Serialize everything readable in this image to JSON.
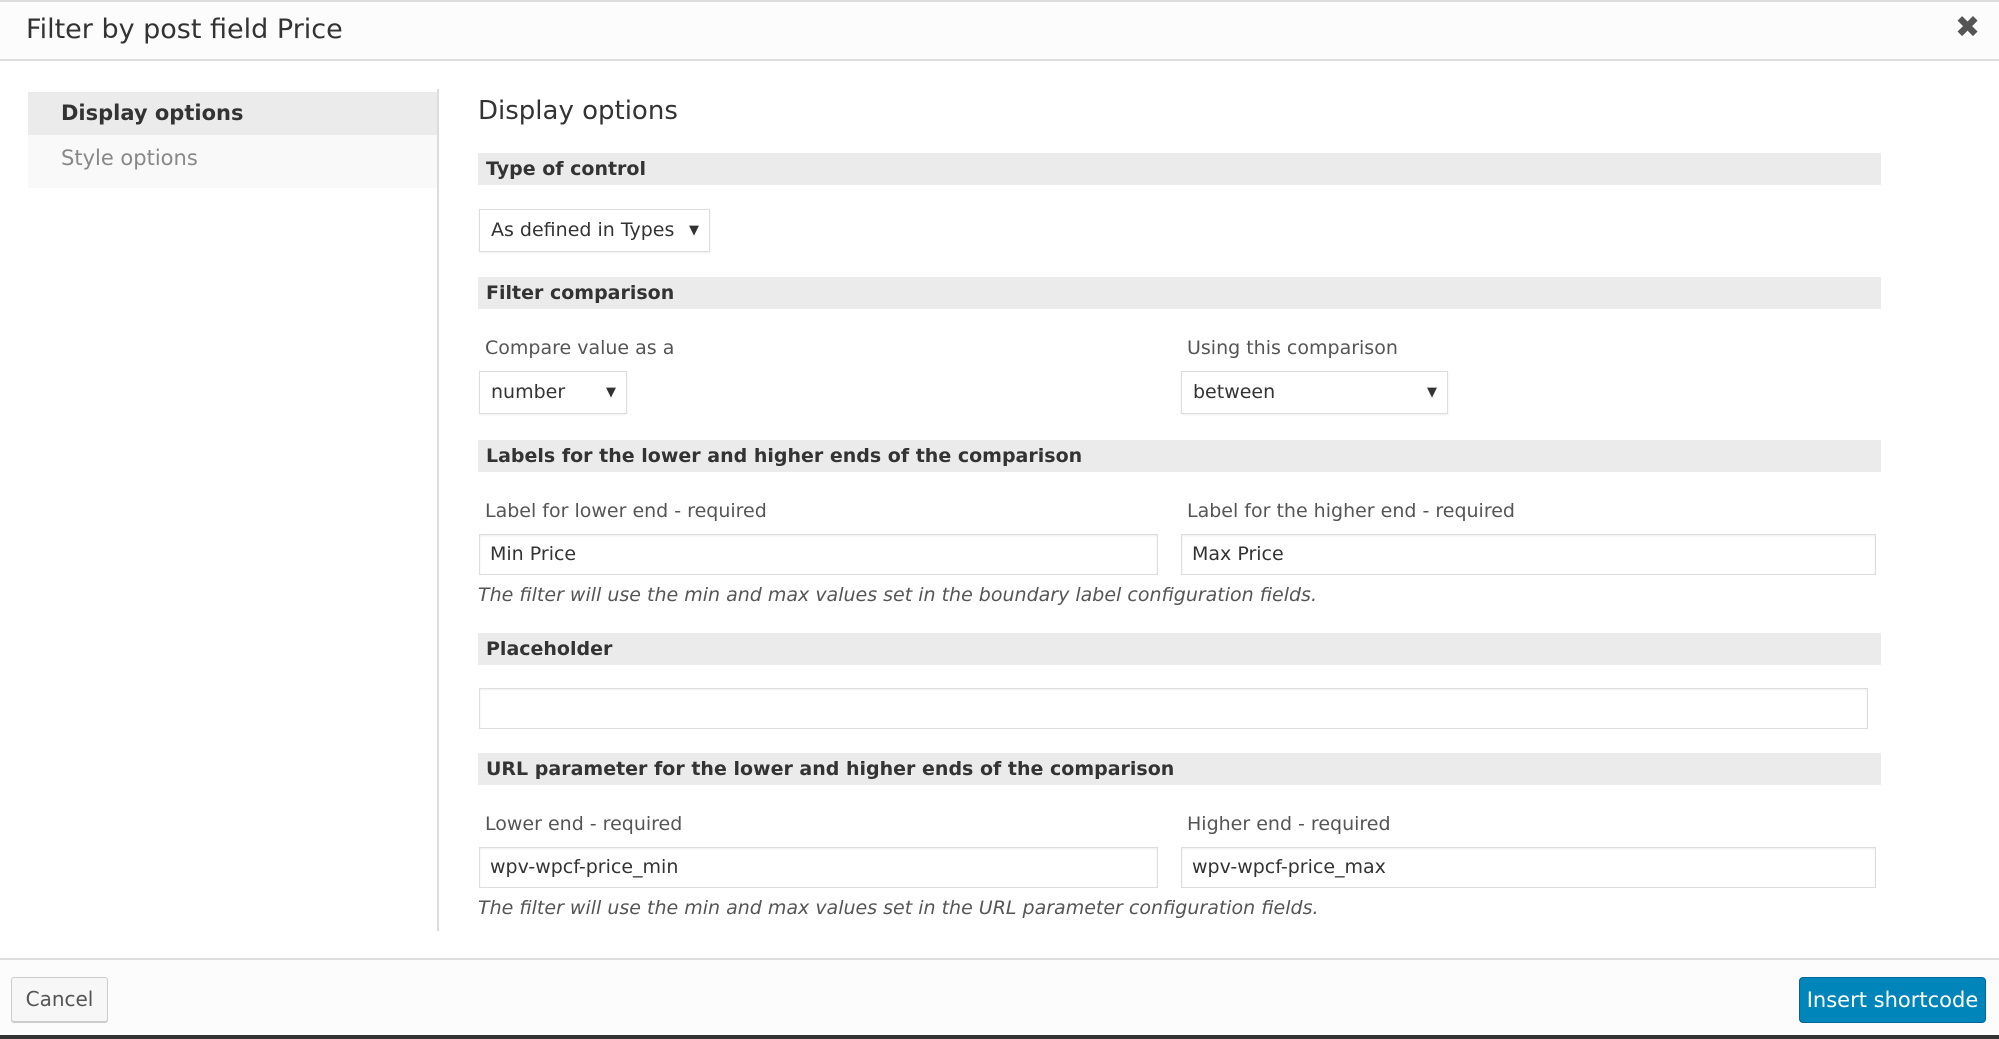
{
  "dialog": {
    "title": "Filter by post field Price",
    "close_icon": "close-icon"
  },
  "sidebar": {
    "items": [
      {
        "label": "Display options",
        "active": true
      },
      {
        "label": "Style options",
        "active": false
      }
    ]
  },
  "main": {
    "heading": "Display options",
    "type_of_control": {
      "section": "Type of control",
      "value": "As defined in Types"
    },
    "filter_comparison": {
      "section": "Filter comparison",
      "compare_label": "Compare value as a",
      "compare_value": "number",
      "using_label": "Using this comparison",
      "using_value": "between"
    },
    "labels": {
      "section": "Labels for the lower and higher ends of the comparison",
      "lower_label": "Label for lower end - required",
      "lower_value": "Min Price",
      "higher_label": "Label for the higher end - required",
      "higher_value": "Max Price",
      "note": "The filter will use the min and max values set in the boundary label configuration fields."
    },
    "placeholder": {
      "section": "Placeholder",
      "value": ""
    },
    "url": {
      "section": "URL parameter for the lower and higher ends of the comparison",
      "lower_label": "Lower end - required",
      "lower_value": "wpv-wpcf-price_min",
      "higher_label": "Higher end - required",
      "higher_value": "wpv-wpcf-price_max",
      "note": "The filter will use the min and max values set in the URL parameter configuration fields."
    }
  },
  "footer": {
    "cancel": "Cancel",
    "insert": "Insert shortcode",
    "insert_color": "#0085ba"
  },
  "arrow": "▼",
  "close_glyph": "✖"
}
